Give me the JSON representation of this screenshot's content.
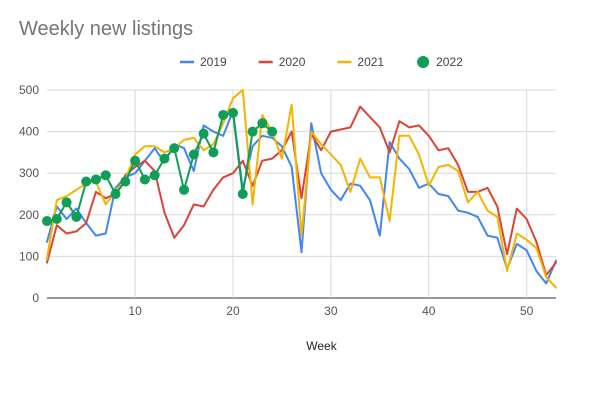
{
  "chart_data": {
    "type": "line",
    "title": "Weekly new listings",
    "xlabel": "Week",
    "ylabel": "",
    "xlim": [
      1,
      53
    ],
    "ylim": [
      0,
      500
    ],
    "xticks": [
      10,
      20,
      30,
      40,
      50
    ],
    "yticks": [
      0,
      100,
      200,
      300,
      400,
      500
    ],
    "grid": true,
    "legend_position": "top",
    "series": [
      {
        "name": "2019",
        "color": "#4285f4",
        "style": "line",
        "x": [
          1,
          2,
          3,
          4,
          5,
          6,
          7,
          8,
          9,
          10,
          11,
          12,
          13,
          14,
          15,
          16,
          17,
          18,
          19,
          20,
          21,
          22,
          23,
          24,
          25,
          26,
          27,
          28,
          29,
          30,
          31,
          32,
          33,
          34,
          35,
          36,
          37,
          38,
          39,
          40,
          41,
          42,
          43,
          44,
          45,
          46,
          47,
          48,
          49,
          50,
          51,
          52,
          53
        ],
        "values": [
          135,
          220,
          190,
          215,
          180,
          150,
          155,
          265,
          290,
          300,
          330,
          360,
          325,
          370,
          360,
          305,
          415,
          400,
          390,
          450,
          260,
          365,
          390,
          385,
          365,
          315,
          110,
          420,
          300,
          260,
          235,
          275,
          270,
          235,
          150,
          375,
          335,
          310,
          265,
          275,
          250,
          245,
          210,
          205,
          195,
          150,
          145,
          70,
          130,
          115,
          65,
          35,
          90
        ]
      },
      {
        "name": "2020",
        "color": "#db4437",
        "style": "line",
        "x": [
          1,
          2,
          3,
          4,
          5,
          6,
          7,
          8,
          9,
          10,
          11,
          12,
          13,
          14,
          15,
          16,
          17,
          18,
          19,
          20,
          21,
          22,
          23,
          24,
          25,
          26,
          27,
          28,
          29,
          30,
          31,
          32,
          33,
          34,
          35,
          36,
          37,
          38,
          39,
          40,
          41,
          42,
          43,
          44,
          45,
          46,
          47,
          48,
          49,
          50,
          51,
          52,
          53
        ],
        "values": [
          85,
          175,
          155,
          160,
          180,
          255,
          240,
          250,
          295,
          315,
          330,
          305,
          205,
          145,
          175,
          225,
          220,
          260,
          290,
          300,
          330,
          270,
          330,
          335,
          355,
          400,
          240,
          395,
          355,
          400,
          405,
          410,
          460,
          435,
          410,
          350,
          425,
          410,
          415,
          390,
          355,
          360,
          320,
          255,
          255,
          265,
          220,
          105,
          215,
          190,
          135,
          55,
          85
        ]
      },
      {
        "name": "2021",
        "color": "#f4b400",
        "style": "line",
        "x": [
          1,
          2,
          3,
          4,
          5,
          6,
          7,
          8,
          9,
          10,
          11,
          12,
          13,
          14,
          15,
          16,
          17,
          18,
          19,
          20,
          21,
          22,
          23,
          24,
          25,
          26,
          27,
          28,
          29,
          30,
          31,
          32,
          33,
          34,
          35,
          36,
          37,
          38,
          39,
          40,
          41,
          42,
          43,
          44,
          45,
          46,
          47,
          48,
          49,
          50,
          51,
          52,
          53
        ],
        "values": [
          95,
          235,
          245,
          260,
          275,
          280,
          225,
          255,
          285,
          345,
          365,
          365,
          350,
          360,
          380,
          385,
          355,
          370,
          420,
          480,
          500,
          225,
          440,
          400,
          335,
          465,
          150,
          400,
          370,
          345,
          320,
          255,
          335,
          290,
          290,
          185,
          390,
          390,
          345,
          270,
          315,
          320,
          305,
          230,
          255,
          210,
          195,
          65,
          155,
          140,
          120,
          50,
          25
        ]
      },
      {
        "name": "2022",
        "color": "#0f9d58",
        "style": "line-markers",
        "x": [
          1,
          2,
          3,
          4,
          5,
          6,
          7,
          8,
          9,
          10,
          11,
          12,
          13,
          14,
          15,
          16,
          17,
          18,
          19,
          20,
          21,
          22,
          23,
          24
        ],
        "values": [
          185,
          190,
          230,
          195,
          280,
          285,
          295,
          250,
          280,
          330,
          285,
          295,
          335,
          360,
          260,
          345,
          395,
          350,
          440,
          445,
          250,
          400,
          420,
          400
        ]
      }
    ]
  }
}
